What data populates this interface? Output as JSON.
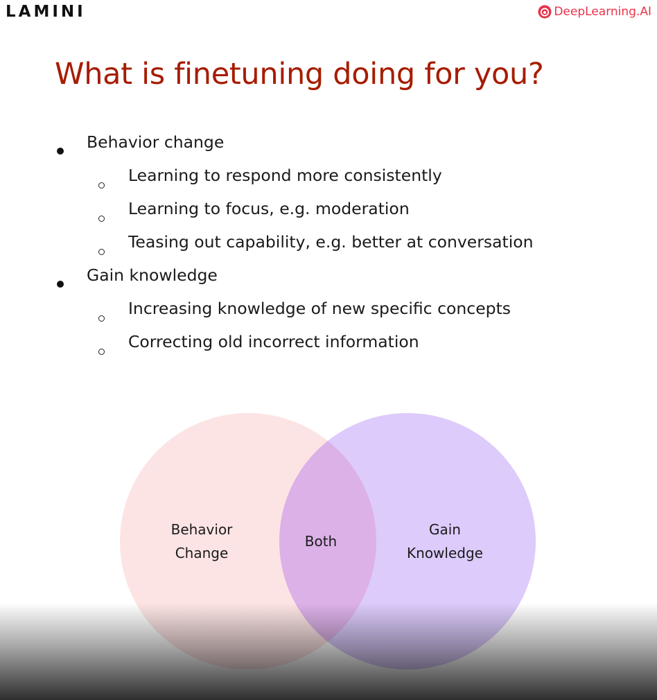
{
  "header": {
    "left_logo": "LAMINI",
    "right_logo": "DeepLearning.AI",
    "right_logo_icon": "deeplearning-ai-logo-icon",
    "brand_color": "#e8334a"
  },
  "title": "What is finetuning doing for you?",
  "title_color": "#a61c00",
  "bullets": [
    {
      "text": "Behavior change",
      "children": [
        "Learning to respond more consistently",
        "Learning to focus, e.g. moderation",
        "Teasing out capability, e.g. better at conversation"
      ]
    },
    {
      "text": "Gain knowledge",
      "children": [
        "Increasing knowledge of new specific concepts",
        "Correcting old incorrect information"
      ]
    }
  ],
  "venn": {
    "left": {
      "lines": [
        "Behavior",
        "Change"
      ],
      "color": "#fde4e4"
    },
    "overlap": {
      "label": "Both",
      "color": "#dcb1e8"
    },
    "right": {
      "lines": [
        "Gain",
        "Knowledge"
      ],
      "color": "#dccbfb"
    }
  }
}
